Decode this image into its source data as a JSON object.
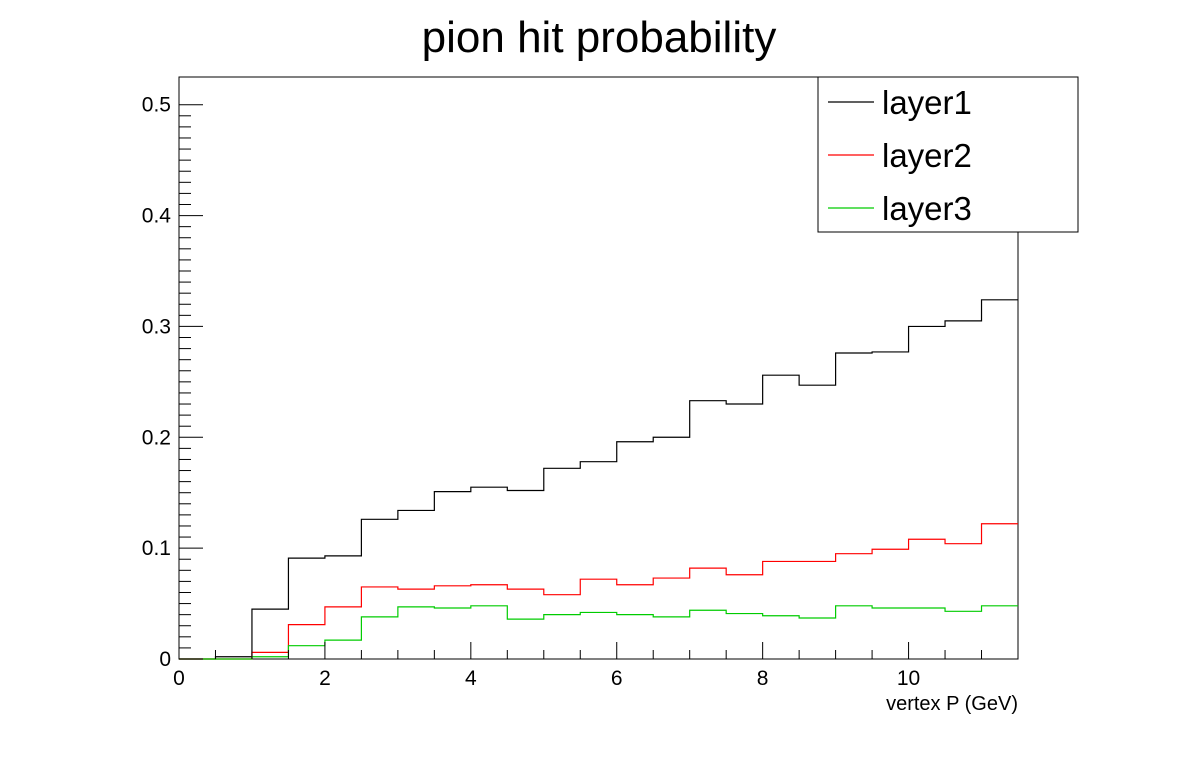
{
  "chart_data": {
    "type": "line",
    "style": "step-histogram",
    "title": "pion hit probability",
    "xlabel": "vertex P (GeV)",
    "ylabel": "",
    "xlim": [
      0,
      11.5
    ],
    "ylim": [
      0,
      0.525
    ],
    "x_ticks": [
      0,
      2,
      4,
      6,
      8,
      10
    ],
    "x_tick_labels": [
      "0",
      "2",
      "4",
      "6",
      "8",
      "10"
    ],
    "y_ticks": [
      0,
      0.1,
      0.2,
      0.3,
      0.4,
      0.5
    ],
    "y_tick_labels": [
      "0",
      "0.1",
      "0.2",
      "0.3",
      "0.4",
      "0.5"
    ],
    "grid": false,
    "legend_position": "top-right",
    "bin_edges": [
      0,
      0.5,
      1,
      1.5,
      2,
      2.5,
      3,
      3.5,
      4,
      4.5,
      5,
      5.5,
      6,
      6.5,
      7,
      7.5,
      8,
      8.5,
      9,
      9.5,
      10,
      10.5,
      11,
      11.5
    ],
    "series": [
      {
        "name": "layer1",
        "color": "#000000",
        "values": [
          0,
          0.002,
          0.045,
          0.091,
          0.093,
          0.126,
          0.134,
          0.151,
          0.155,
          0.152,
          0.172,
          0.178,
          0.196,
          0.2,
          0.233,
          0.23,
          0.256,
          0.247,
          0.276,
          0.277,
          0.3,
          0.305,
          0.324
        ]
      },
      {
        "name": "layer2",
        "color": "#ff0000",
        "values": [
          0,
          0,
          0.006,
          0.031,
          0.047,
          0.065,
          0.063,
          0.066,
          0.067,
          0.063,
          0.058,
          0.072,
          0.067,
          0.073,
          0.082,
          0.076,
          0.088,
          0.088,
          0.095,
          0.099,
          0.108,
          0.104,
          0.122
        ]
      },
      {
        "name": "layer3",
        "color": "#00cc00",
        "values": [
          0,
          0,
          0.002,
          0.012,
          0.017,
          0.038,
          0.047,
          0.046,
          0.048,
          0.036,
          0.04,
          0.042,
          0.04,
          0.038,
          0.044,
          0.041,
          0.039,
          0.037,
          0.048,
          0.046,
          0.046,
          0.043,
          0.048
        ]
      }
    ]
  }
}
